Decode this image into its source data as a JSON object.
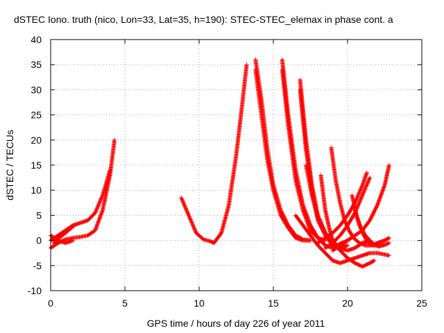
{
  "chart_data": {
    "type": "scatter",
    "title": "dSTEC Iono. truth (nico, Lon=33, Lat=35, h=190): STEC-STEC_elemax in phase cont. a",
    "xlabel": "GPS time / hours of day 226 of year 2011",
    "ylabel": "dSTEC  / TECUs",
    "xlim": [
      0,
      25
    ],
    "ylim": [
      -10,
      40
    ],
    "xticks": [
      0,
      5,
      10,
      15,
      20,
      25
    ],
    "yticks": [
      -10,
      -5,
      0,
      5,
      10,
      15,
      20,
      25,
      30,
      35,
      40
    ],
    "grid": true,
    "marker": "+",
    "color": "#ff0000",
    "series": [
      {
        "x": [
          0.0,
          0.5,
          1.0,
          1.5,
          2.0,
          2.5,
          3.0,
          3.5,
          4.0,
          4.3
        ],
        "y": [
          -1.5,
          -0.5,
          0.2,
          0.5,
          0.7,
          1.0,
          2.0,
          6.0,
          13.0,
          20.0
        ]
      },
      {
        "x": [
          0.0,
          0.5,
          1.0,
          1.5
        ],
        "y": [
          1.0,
          0.0,
          -0.5,
          0.0
        ]
      },
      {
        "x": [
          0.0,
          0.5,
          1.0,
          1.5,
          2.0,
          2.5,
          3.0,
          3.5,
          4.0
        ],
        "y": [
          0.0,
          1.0,
          2.0,
          3.0,
          3.5,
          4.0,
          5.5,
          9.0,
          14.0
        ]
      },
      {
        "x": [
          0.2,
          0.7,
          1.2,
          1.6
        ],
        "y": [
          -0.5,
          0.8,
          2.0,
          3.0
        ]
      },
      {
        "x": [
          8.8,
          9.3,
          9.8,
          10.3,
          10.8,
          11.0,
          11.5,
          12.0,
          12.5,
          12.9,
          13.2
        ],
        "y": [
          8.5,
          5.0,
          1.5,
          0.2,
          -0.2,
          -0.5,
          1.5,
          7.0,
          17.0,
          27.0,
          35.0
        ]
      },
      {
        "x": [
          13.8,
          14.2,
          14.6,
          15.0,
          15.5,
          16.0,
          16.5,
          17.0,
          17.5
        ],
        "y": [
          36.0,
          28.0,
          18.0,
          11.0,
          6.0,
          3.0,
          1.0,
          0.2,
          0.0
        ]
      },
      {
        "x": [
          13.8,
          14.2,
          14.6,
          15.0,
          15.5,
          16.0,
          16.5,
          17.0,
          17.5
        ],
        "y": [
          34.0,
          25.0,
          16.0,
          10.0,
          5.0,
          2.5,
          0.5,
          0.0,
          0.0
        ]
      },
      {
        "x": [
          15.6,
          16.0,
          16.5,
          17.0,
          17.5,
          18.0,
          18.5,
          19.0,
          19.5,
          20.0
        ],
        "y": [
          36.0,
          25.0,
          14.0,
          7.0,
          3.0,
          0.5,
          -1.0,
          -1.5,
          -1.0,
          0.0
        ]
      },
      {
        "x": [
          15.6,
          16.0,
          16.5,
          17.0,
          17.5,
          18.0,
          18.5
        ],
        "y": [
          34.0,
          23.0,
          12.0,
          6.0,
          2.0,
          0.5,
          0.0
        ]
      },
      {
        "x": [
          16.8,
          17.2,
          17.6,
          18.0,
          18.5,
          19.0,
          19.5,
          20.0,
          20.5,
          21.0,
          21.5
        ],
        "y": [
          32.0,
          20.0,
          11.0,
          5.0,
          1.5,
          -0.5,
          -1.5,
          -2.0,
          -1.5,
          -0.5,
          0.0
        ]
      },
      {
        "x": [
          16.8,
          17.2,
          17.6,
          18.0,
          18.5,
          19.0,
          19.5,
          20.0
        ],
        "y": [
          30.0,
          18.0,
          10.0,
          4.0,
          1.0,
          -1.0,
          -1.5,
          -1.0
        ]
      },
      {
        "x": [
          16.5,
          17.0,
          17.5,
          18.0,
          18.5,
          19.0,
          19.5,
          20.0,
          20.5,
          21.0,
          21.5,
          22.0,
          22.5,
          22.8
        ],
        "y": [
          5.0,
          3.0,
          1.0,
          -1.0,
          -2.5,
          -4.0,
          -4.5,
          -4.0,
          -3.5,
          -3.0,
          -2.5,
          -2.5,
          -2.8,
          -3.0
        ]
      },
      {
        "x": [
          17.2,
          17.6,
          18.0,
          18.5,
          19.0,
          19.5,
          20.0,
          20.5,
          21.0,
          21.5,
          21.8
        ],
        "y": [
          15.0,
          9.0,
          4.5,
          1.5,
          -0.5,
          -2.0,
          -3.5,
          -4.5,
          -5.2,
          -4.5,
          -4.0
        ]
      },
      {
        "x": [
          18.2,
          18.5,
          18.8,
          19.0,
          19.3,
          19.6,
          20.0
        ],
        "y": [
          13.0,
          6.0,
          2.0,
          0.0,
          -1.0,
          -0.5,
          0.0
        ]
      },
      {
        "x": [
          18.9,
          19.2,
          19.5,
          19.8,
          20.1,
          20.4,
          20.8,
          21.2,
          21.6,
          22.0,
          22.5,
          22.8
        ],
        "y": [
          18.5,
          12.0,
          7.5,
          4.0,
          2.0,
          0.5,
          -0.5,
          -1.0,
          -1.0,
          -0.5,
          0.0,
          0.5
        ]
      },
      {
        "x": [
          18.0,
          18.5,
          19.0,
          19.5,
          20.0,
          20.5,
          21.0,
          21.3
        ],
        "y": [
          -0.5,
          0.5,
          1.5,
          3.0,
          5.0,
          7.5,
          11.0,
          13.5
        ]
      },
      {
        "x": [
          18.5,
          19.0,
          19.5,
          20.0,
          20.5,
          21.0,
          21.5
        ],
        "y": [
          -1.5,
          -0.5,
          1.0,
          3.0,
          5.5,
          9.0,
          12.5
        ]
      },
      {
        "x": [
          19.0,
          19.5,
          20.0,
          20.5,
          21.0,
          21.5,
          22.0,
          22.5,
          22.8
        ],
        "y": [
          -2.0,
          -1.0,
          0.0,
          1.0,
          2.0,
          4.0,
          7.0,
          11.0,
          15.0
        ]
      },
      {
        "x": [
          20.3,
          20.6,
          20.9,
          21.2,
          21.5,
          21.8,
          22.1,
          22.4,
          22.8
        ],
        "y": [
          9.0,
          5.0,
          2.5,
          1.0,
          0.0,
          -0.8,
          -1.2,
          -1.0,
          -0.5
        ]
      },
      {
        "x": [
          20.5,
          20.8,
          21.1,
          21.4,
          21.7,
          22.0,
          22.4
        ],
        "y": [
          6.0,
          3.0,
          1.0,
          -0.5,
          -1.0,
          -1.0,
          -0.8
        ]
      }
    ]
  }
}
